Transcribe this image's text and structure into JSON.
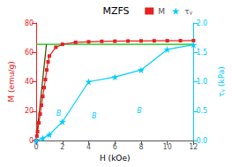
{
  "chart_data": {
    "type": "line",
    "title": "MZFS",
    "xlabel": "H (kOe)",
    "ylabel": "M (emu/g)",
    "y2label": "τᵧ (kPa)",
    "xlim": [
      0,
      12
    ],
    "xticks": [
      0,
      2,
      4,
      6,
      8,
      10,
      12
    ],
    "ylim": [
      0,
      80
    ],
    "yticks": [
      0,
      20,
      40,
      60,
      80
    ],
    "y2lim": [
      0,
      2.0
    ],
    "y2ticks": [
      {
        "value": 0.0,
        "label": "0.0"
      },
      0.5,
      {
        "value": 1.0,
        "label": "1.0"
      },
      1.5,
      {
        "value": 2.0,
        "label": "2.0"
      }
    ],
    "grid": false,
    "legend": "upper right",
    "series": [
      {
        "name": "M",
        "color": "#e82020",
        "marker": "square",
        "x": [
          0.0,
          0.05,
          0.1,
          0.2,
          0.3,
          0.4,
          0.5,
          0.6,
          0.7,
          0.8,
          0.9,
          1.0,
          1.5,
          2.0,
          3.0,
          4.0,
          5.0,
          6.0,
          7.0,
          8.0,
          9.0,
          10.0,
          11.0,
          12.0
        ],
        "values": [
          0.0,
          3.0,
          6.0,
          12.0,
          18.0,
          24.0,
          30.0,
          36.0,
          41.5,
          48.0,
          53.5,
          57.5,
          63.5,
          65.5,
          66.8,
          67.2,
          67.5,
          67.6,
          67.7,
          67.8,
          67.85,
          67.9,
          67.95,
          68.0
        ]
      },
      {
        "color": "#00cc00",
        "x": [
          0.0,
          12.0
        ],
        "values": [
          65.5,
          65.5
        ]
      },
      {
        "color": "#404000",
        "x": [
          0.0,
          0.78
        ],
        "values": [
          0.0,
          65.5
        ]
      },
      {
        "name": "τᵧ",
        "color": "#00ccff",
        "marker": "star",
        "axis": "y2",
        "x": [
          0.0,
          0.5,
          1.0,
          2.0,
          4.0,
          6.0,
          8.0,
          10.0,
          12.0
        ],
        "values": [
          0.0,
          0.04,
          0.1,
          0.32,
          1.0,
          1.08,
          1.2,
          1.55,
          1.63
        ]
      }
    ],
    "annotations": [
      "B",
      "B",
      "B"
    ],
    "annotation_color": "#00ccff"
  }
}
